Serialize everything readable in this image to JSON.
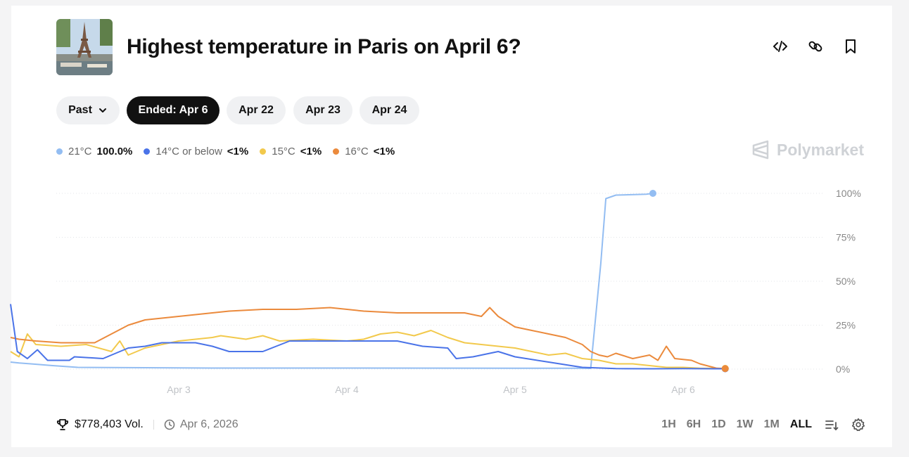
{
  "market": {
    "title": "Highest temperature in Paris on April 6?"
  },
  "header_icons": [
    "code-icon",
    "link-icon",
    "bookmark-icon"
  ],
  "date_tabs": {
    "past_label": "Past",
    "tabs": [
      {
        "label": "Ended: Apr 6",
        "active": true
      },
      {
        "label": "Apr 22",
        "active": false
      },
      {
        "label": "Apr 23",
        "active": false
      },
      {
        "label": "Apr 24",
        "active": false
      }
    ]
  },
  "legend": [
    {
      "name": "21°C",
      "value": "100.0%",
      "color": "#93bdf2"
    },
    {
      "name": "14°C or below",
      "value": "<1%",
      "color": "#4a73e8"
    },
    {
      "name": "15°C",
      "value": "<1%",
      "color": "#f2c94c"
    },
    {
      "name": "16°C",
      "value": "<1%",
      "color": "#eb8a3c"
    }
  ],
  "brand": {
    "name": "Polymarket"
  },
  "chart_data": {
    "type": "line",
    "x_ticks": [
      "Apr 3",
      "Apr 4",
      "Apr 5",
      "Apr 6"
    ],
    "y_ticks": [
      "100%",
      "75%",
      "50%",
      "25%",
      "0%"
    ],
    "ylim": [
      0,
      100
    ],
    "grid": true,
    "series": [
      {
        "name": "21°C",
        "color": "#93bdf2",
        "points": [
          [
            0,
            4
          ],
          [
            0.05,
            3.5
          ],
          [
            0.12,
            3
          ],
          [
            0.25,
            2
          ],
          [
            0.4,
            1
          ],
          [
            0.8,
            0.8
          ],
          [
            1.2,
            0.6
          ],
          [
            2,
            0.6
          ],
          [
            3,
            0.5
          ],
          [
            3.4,
            0.5
          ],
          [
            3.45,
            0.4
          ],
          [
            3.51,
            60
          ],
          [
            3.54,
            97
          ],
          [
            3.6,
            99
          ],
          [
            3.78,
            99.5
          ],
          [
            3.82,
            100
          ]
        ]
      },
      {
        "name": "14°C or below",
        "color": "#4a73e8",
        "points": [
          [
            0,
            37
          ],
          [
            0.04,
            10
          ],
          [
            0.1,
            6
          ],
          [
            0.16,
            11
          ],
          [
            0.22,
            5
          ],
          [
            0.35,
            5
          ],
          [
            0.38,
            7
          ],
          [
            0.55,
            6
          ],
          [
            0.6,
            8
          ],
          [
            0.7,
            12
          ],
          [
            0.8,
            13
          ],
          [
            0.9,
            15
          ],
          [
            1.1,
            15
          ],
          [
            1.2,
            13
          ],
          [
            1.3,
            10
          ],
          [
            1.5,
            10
          ],
          [
            1.58,
            13
          ],
          [
            1.66,
            16
          ],
          [
            1.9,
            16
          ],
          [
            2.3,
            16
          ],
          [
            2.45,
            13
          ],
          [
            2.6,
            12
          ],
          [
            2.65,
            6
          ],
          [
            2.75,
            7
          ],
          [
            2.9,
            10
          ],
          [
            3.0,
            7
          ],
          [
            3.2,
            4
          ],
          [
            3.4,
            1
          ],
          [
            3.6,
            0.3
          ],
          [
            3.82,
            0.2
          ],
          [
            4.0,
            0.3
          ],
          [
            4.25,
            0.2
          ]
        ]
      },
      {
        "name": "15°C",
        "color": "#f2c94c",
        "points": [
          [
            0,
            10
          ],
          [
            0.05,
            7
          ],
          [
            0.1,
            20
          ],
          [
            0.15,
            14
          ],
          [
            0.3,
            13
          ],
          [
            0.45,
            14
          ],
          [
            0.6,
            10
          ],
          [
            0.65,
            16
          ],
          [
            0.7,
            8
          ],
          [
            0.8,
            12
          ],
          [
            0.9,
            14
          ],
          [
            1.0,
            16
          ],
          [
            1.2,
            18
          ],
          [
            1.25,
            19
          ],
          [
            1.4,
            17
          ],
          [
            1.5,
            19
          ],
          [
            1.6,
            16
          ],
          [
            1.8,
            17
          ],
          [
            2.0,
            16
          ],
          [
            2.1,
            17
          ],
          [
            2.2,
            20
          ],
          [
            2.3,
            21
          ],
          [
            2.4,
            19
          ],
          [
            2.5,
            22
          ],
          [
            2.6,
            18
          ],
          [
            2.7,
            15
          ],
          [
            2.8,
            14
          ],
          [
            3.0,
            12
          ],
          [
            3.1,
            10
          ],
          [
            3.2,
            8
          ],
          [
            3.3,
            9
          ],
          [
            3.4,
            6
          ],
          [
            3.5,
            5
          ],
          [
            3.6,
            3
          ],
          [
            3.7,
            3
          ],
          [
            3.8,
            2
          ],
          [
            3.9,
            1
          ],
          [
            4.0,
            1
          ],
          [
            4.1,
            0.5
          ],
          [
            4.25,
            0.4
          ]
        ]
      },
      {
        "name": "16°C",
        "color": "#eb8a3c",
        "points": [
          [
            0,
            18
          ],
          [
            0.05,
            17
          ],
          [
            0.15,
            16
          ],
          [
            0.3,
            15
          ],
          [
            0.5,
            15
          ],
          [
            0.6,
            20
          ],
          [
            0.7,
            25
          ],
          [
            0.8,
            28
          ],
          [
            1.0,
            30
          ],
          [
            1.1,
            31
          ],
          [
            1.3,
            33
          ],
          [
            1.5,
            34
          ],
          [
            1.7,
            34
          ],
          [
            1.9,
            35
          ],
          [
            2.1,
            33
          ],
          [
            2.3,
            32
          ],
          [
            2.5,
            32
          ],
          [
            2.7,
            32
          ],
          [
            2.8,
            30
          ],
          [
            2.85,
            35
          ],
          [
            2.9,
            30
          ],
          [
            3.0,
            24
          ],
          [
            3.1,
            22
          ],
          [
            3.2,
            20
          ],
          [
            3.3,
            18
          ],
          [
            3.4,
            14
          ],
          [
            3.45,
            10
          ],
          [
            3.5,
            8
          ],
          [
            3.55,
            7
          ],
          [
            3.6,
            9
          ],
          [
            3.7,
            6
          ],
          [
            3.8,
            8
          ],
          [
            3.85,
            5
          ],
          [
            3.9,
            13
          ],
          [
            3.95,
            6
          ],
          [
            4.05,
            5
          ],
          [
            4.1,
            3
          ],
          [
            4.2,
            0.5
          ],
          [
            4.25,
            0.3
          ]
        ]
      }
    ]
  },
  "footer": {
    "volume": "$778,403 Vol.",
    "date": "Apr 6, 2026",
    "ranges": [
      {
        "label": "1H",
        "active": false
      },
      {
        "label": "6H",
        "active": false
      },
      {
        "label": "1D",
        "active": false
      },
      {
        "label": "1W",
        "active": false
      },
      {
        "label": "1M",
        "active": false
      },
      {
        "label": "ALL",
        "active": true
      }
    ]
  }
}
